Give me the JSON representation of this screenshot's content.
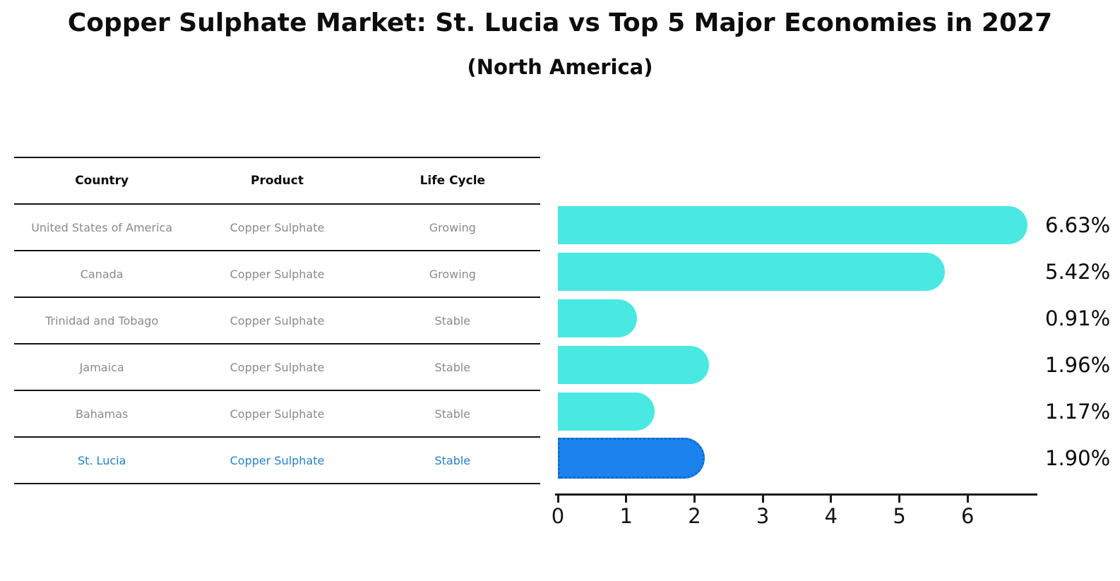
{
  "title": "Copper Sulphate Market: St. Lucia vs Top 5 Major Economies in 2027",
  "subtitle": "(North America)",
  "table": {
    "headers": [
      "Country",
      "Product",
      "Life Cycle"
    ],
    "rows": [
      {
        "country": "United States of America",
        "product": "Copper Sulphate",
        "life_cycle": "Growing",
        "highlight": false
      },
      {
        "country": "Canada",
        "product": "Copper Sulphate",
        "life_cycle": "Growing",
        "highlight": false
      },
      {
        "country": "Trinidad and Tobago",
        "product": "Copper Sulphate",
        "life_cycle": "Stable",
        "highlight": false
      },
      {
        "country": "Jamaica",
        "product": "Copper Sulphate",
        "life_cycle": "Stable",
        "highlight": false
      },
      {
        "country": "Bahamas",
        "product": "Copper Sulphate",
        "life_cycle": "Stable",
        "highlight": false
      },
      {
        "country": "St. Lucia",
        "product": "Copper Sulphate",
        "life_cycle": "Stable",
        "highlight": true
      }
    ]
  },
  "chart_data": {
    "type": "bar",
    "orientation": "horizontal",
    "title": "Copper Sulphate Market: St. Lucia vs Top 5 Major Economies in 2027",
    "subtitle": "(North America)",
    "categories": [
      "United States of America",
      "Canada",
      "Trinidad and Tobago",
      "Jamaica",
      "Bahamas",
      "St. Lucia"
    ],
    "values": [
      6.63,
      5.42,
      0.91,
      1.96,
      1.17,
      1.9
    ],
    "value_labels": [
      "6.63%",
      "5.42%",
      "0.91%",
      "1.96%",
      "1.17%",
      "1.90%"
    ],
    "units": "%",
    "x_ticks": [
      0,
      1,
      2,
      3,
      4,
      5,
      6
    ],
    "xlim": [
      0,
      7
    ],
    "grid": false,
    "legend": false,
    "highlight_index": 5,
    "bar_color": "#4AE8E2",
    "highlight_bar_color": "#1C82EE",
    "highlight_border_color": "#0D6BD0",
    "highlight_text_color": "#2580C8",
    "axis_color": "#1a1a1a"
  }
}
